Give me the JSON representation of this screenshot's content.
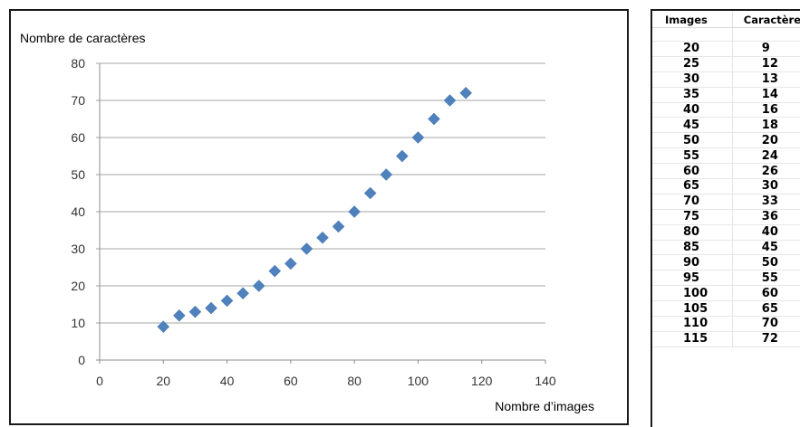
{
  "chart_data": {
    "type": "scatter",
    "title": "",
    "ylabel": "Nombre de caractères",
    "xlabel": "Nombre d’images",
    "xlim": [
      0,
      140
    ],
    "ylim": [
      0,
      80
    ],
    "xticks": [
      0,
      20,
      40,
      60,
      80,
      100,
      120,
      140
    ],
    "yticks": [
      0,
      10,
      20,
      30,
      40,
      50,
      60,
      70,
      80
    ],
    "grid": "horizontal",
    "marker": "diamond",
    "color": "#4f81bd",
    "x": [
      20,
      25,
      30,
      35,
      40,
      45,
      50,
      55,
      60,
      65,
      70,
      75,
      80,
      85,
      90,
      95,
      100,
      105,
      110,
      115
    ],
    "y": [
      9,
      12,
      13,
      14,
      16,
      18,
      20,
      24,
      26,
      30,
      33,
      36,
      40,
      45,
      50,
      55,
      60,
      65,
      70,
      72
    ]
  },
  "table": {
    "headers": [
      "Images",
      "Caractère"
    ],
    "rows": [
      [
        "20",
        "9"
      ],
      [
        "25",
        "12"
      ],
      [
        "30",
        "13"
      ],
      [
        "35",
        "14"
      ],
      [
        "40",
        "16"
      ],
      [
        "45",
        "18"
      ],
      [
        "50",
        "20"
      ],
      [
        "55",
        "24"
      ],
      [
        "60",
        "26"
      ],
      [
        "65",
        "30"
      ],
      [
        "70",
        "33"
      ],
      [
        "75",
        "36"
      ],
      [
        "80",
        "40"
      ],
      [
        "85",
        "45"
      ],
      [
        "90",
        "50"
      ],
      [
        "95",
        "55"
      ],
      [
        "100",
        "60"
      ],
      [
        "105",
        "65"
      ],
      [
        "110",
        "70"
      ],
      [
        "115",
        "72"
      ]
    ]
  }
}
